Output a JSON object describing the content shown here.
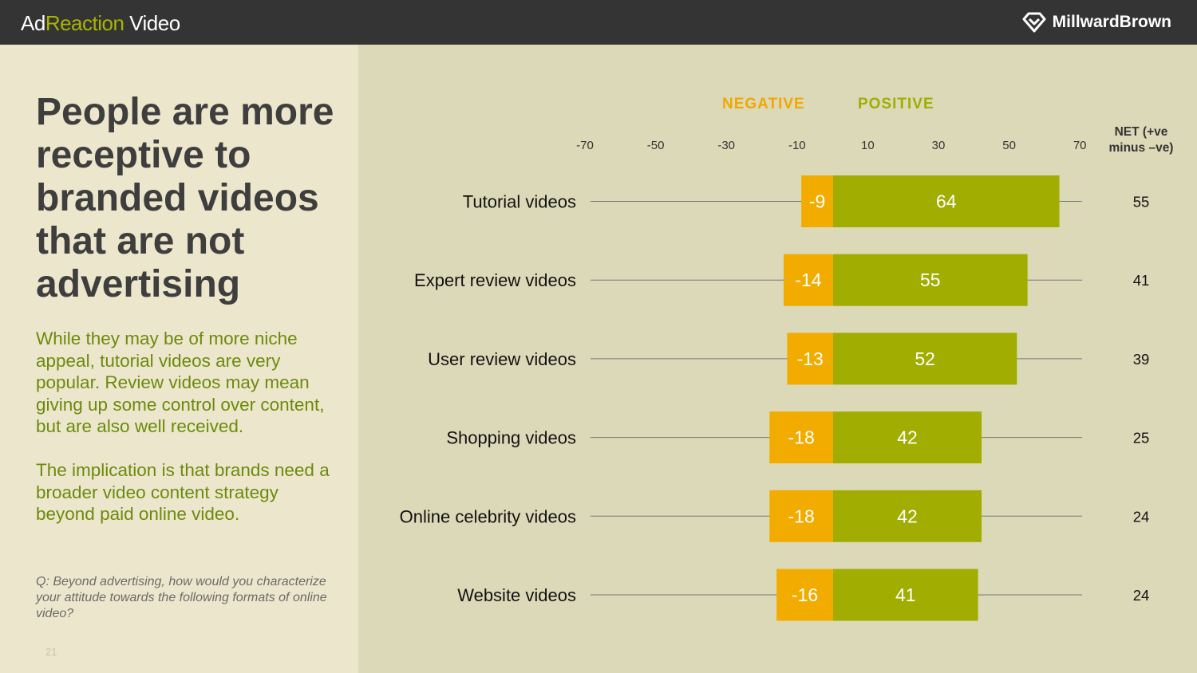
{
  "header": {
    "brand_part1": "Ad",
    "brand_part2": "Reaction",
    "brand_part3": " Video",
    "logo_text": "MillwardBrown"
  },
  "left": {
    "headline": "People are more receptive to branded videos that are not advertising",
    "paragraph1": "While they may be of more niche appeal, tutorial videos are very popular. Review videos may mean giving up some control over content, but are also well received.",
    "paragraph2": "The implication is that brands need a broader video content strategy beyond paid online video.",
    "footnote": "Q:  Beyond advertising, how would you characterize your attitude towards the following formats of online video?",
    "page_number": "21"
  },
  "colors": {
    "negative": "#f2ac00",
    "positive": "#a1ad00",
    "axis_line": "#777777",
    "headline": "#3e3e3e",
    "body_text": "#6c8a0c"
  },
  "chart_data": {
    "type": "bar",
    "orientation": "horizontal-diverging",
    "title": "",
    "legend": [
      "NEGATIVE",
      "POSITIVE"
    ],
    "net_header": "NET (+ve minus –ve)",
    "x_ticks": [
      -70,
      -50,
      -30,
      -10,
      10,
      30,
      50,
      70
    ],
    "x_tick_labels": [
      "-70",
      "-50",
      "-30",
      "-10",
      "10",
      "30",
      "50",
      "70"
    ],
    "xlim": [
      -70,
      70
    ],
    "categories": [
      "Tutorial videos",
      "Expert review videos",
      "User review videos",
      "Shopping videos",
      "Online celebrity videos",
      "Website videos"
    ],
    "series": [
      {
        "name": "NEGATIVE",
        "values": [
          -9,
          -14,
          -13,
          -18,
          -18,
          -16
        ]
      },
      {
        "name": "POSITIVE",
        "values": [
          64,
          55,
          52,
          42,
          42,
          41
        ]
      }
    ],
    "net": [
      55,
      41,
      39,
      25,
      24,
      24
    ]
  }
}
